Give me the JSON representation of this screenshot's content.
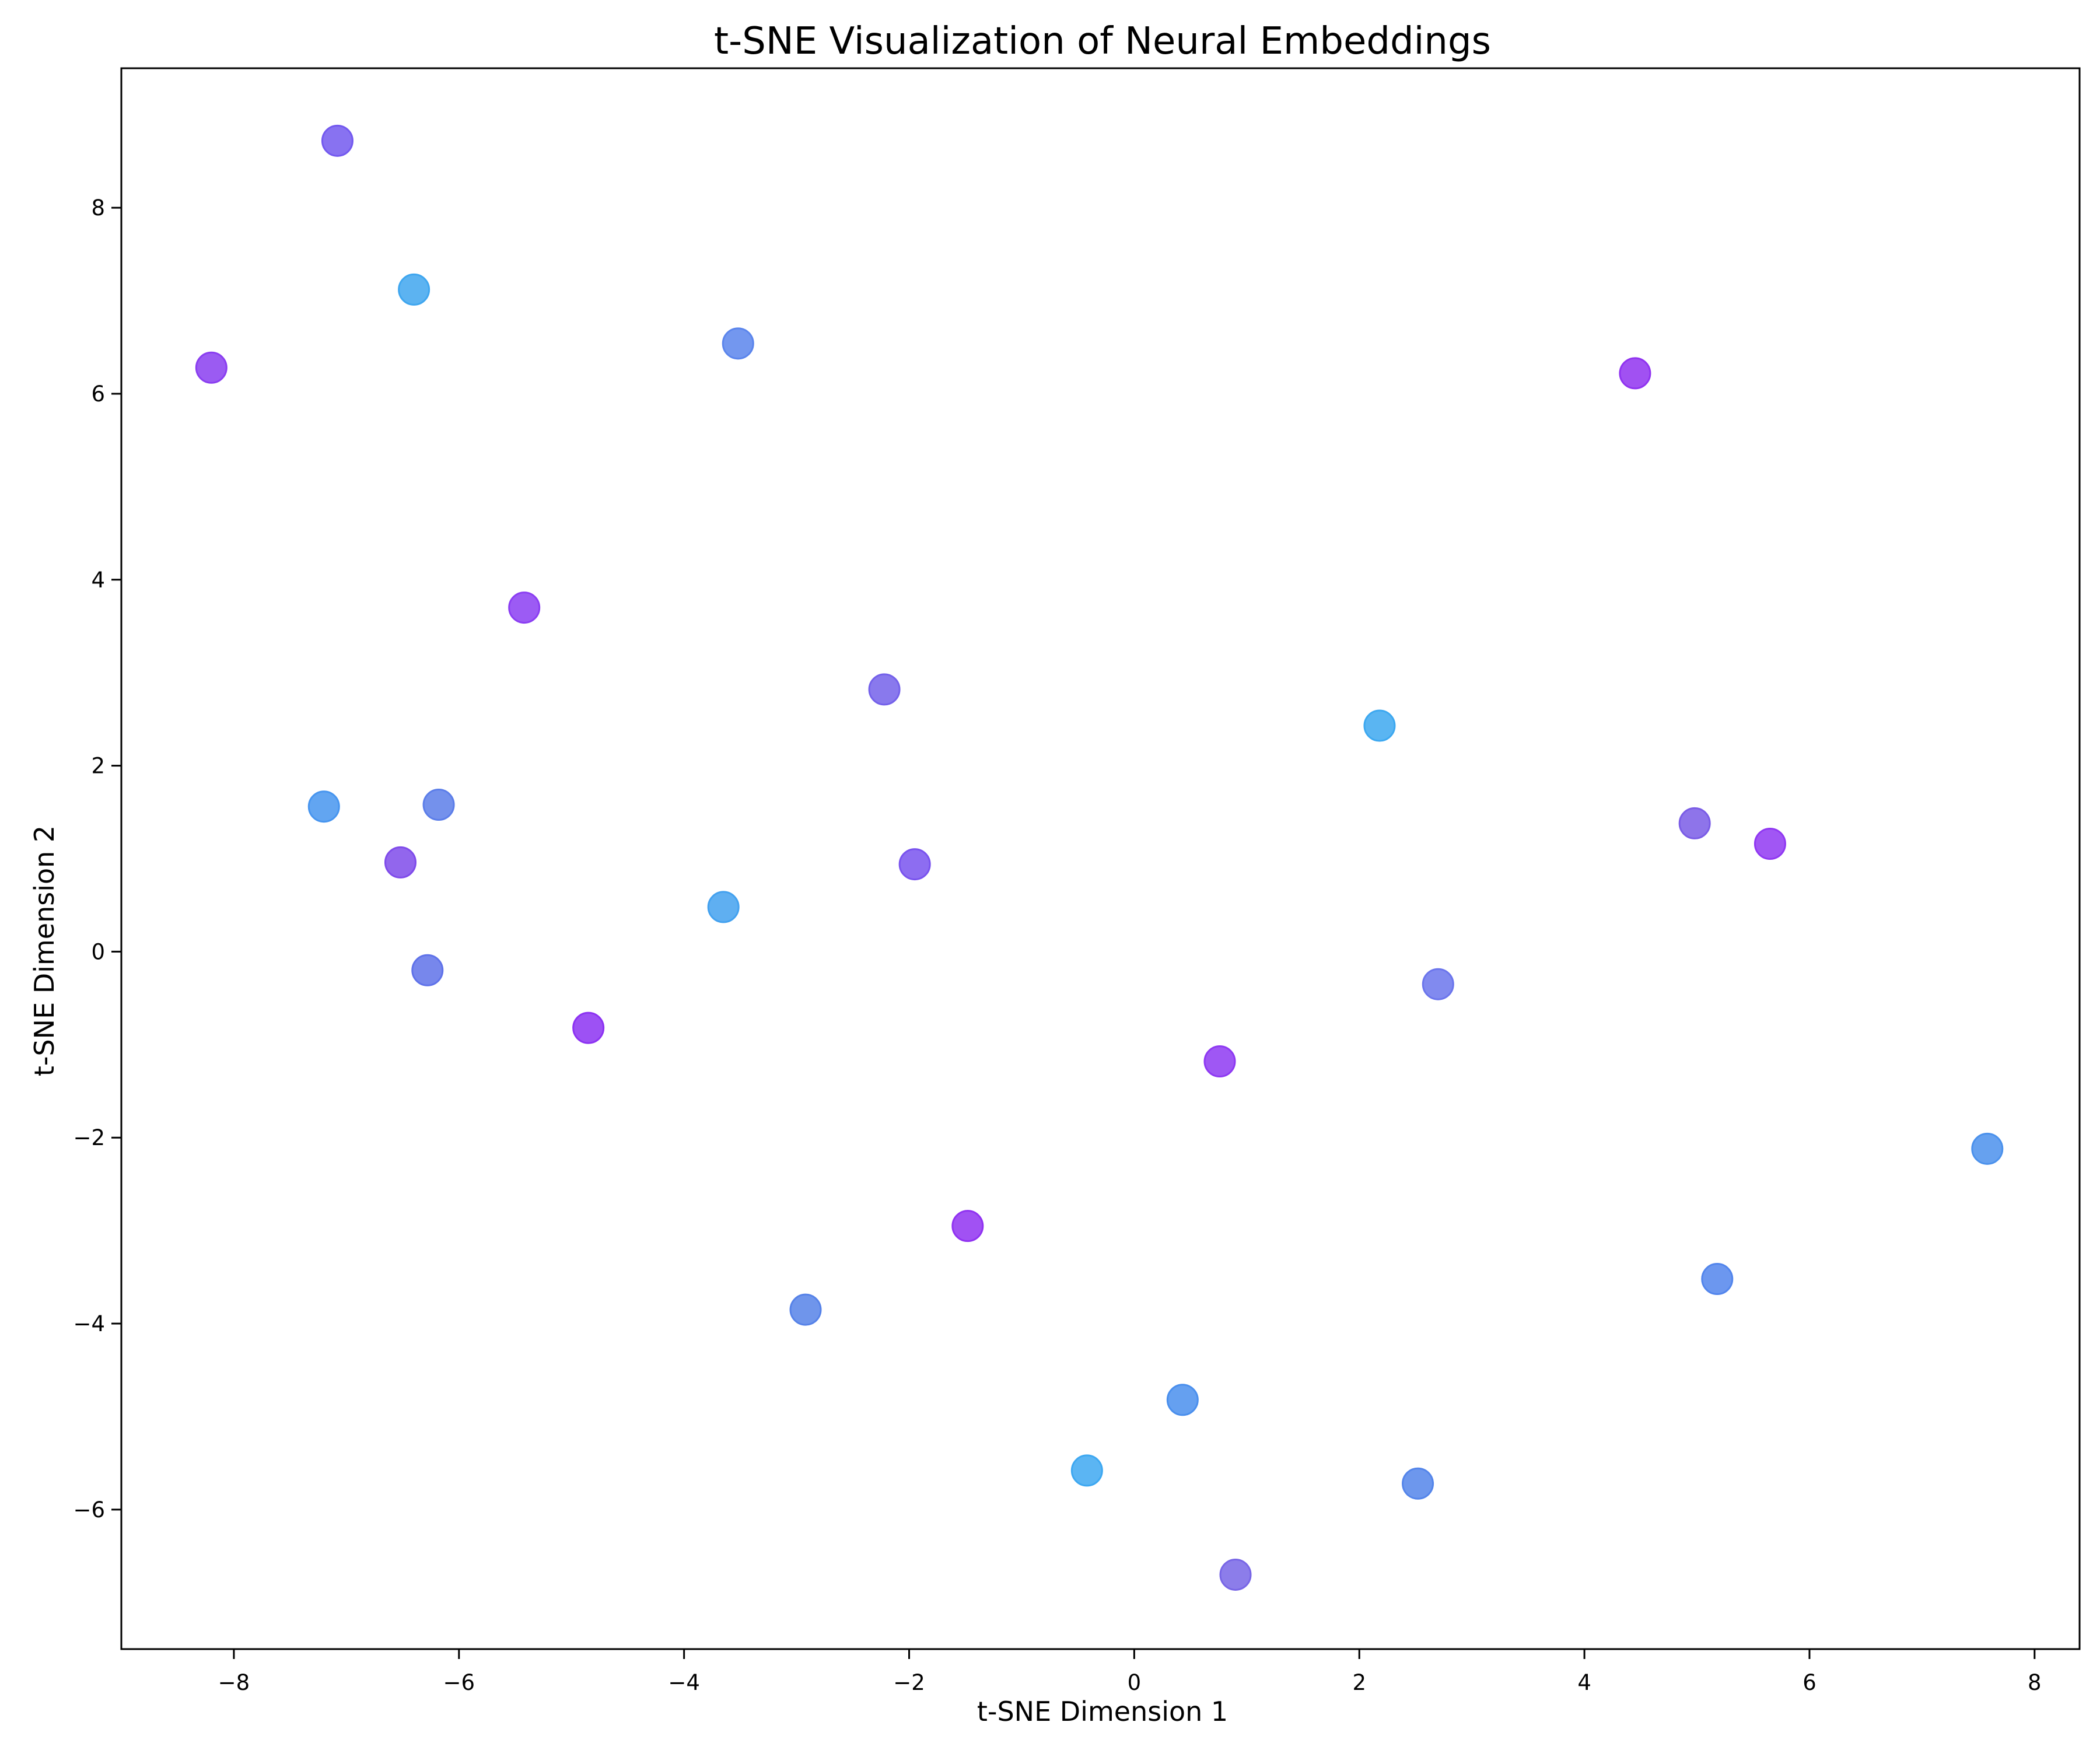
{
  "chart_data": {
    "type": "scatter",
    "title": "t-SNE Visualization of Neural Embeddings",
    "xlabel": "t-SNE Dimension 1",
    "ylabel": "t-SNE Dimension 2",
    "xlim": [
      -9.0,
      8.4
    ],
    "ylim": [
      -7.5,
      9.5
    ],
    "xticks": [
      -8,
      -6,
      -4,
      -2,
      0,
      2,
      4,
      6,
      8
    ],
    "yticks": [
      -6,
      -4,
      -2,
      0,
      2,
      4,
      6,
      8
    ],
    "xtick_labels": [
      "−8",
      "−6",
      "−4",
      "−2",
      "0",
      "2",
      "4",
      "6",
      "8"
    ],
    "ytick_labels": [
      "−6",
      "−4",
      "−2",
      "0",
      "2",
      "4",
      "6",
      "8"
    ],
    "grid": false,
    "points": [
      {
        "x": -7.08,
        "y": 8.72,
        "color": "#7359ef"
      },
      {
        "x": -6.4,
        "y": 7.12,
        "color": "#3fa6ef"
      },
      {
        "x": -8.2,
        "y": 6.28,
        "color": "#8a3ef0"
      },
      {
        "x": -3.52,
        "y": 6.54,
        "color": "#5b85ec"
      },
      {
        "x": 4.45,
        "y": 6.22,
        "color": "#9033f0"
      },
      {
        "x": -5.42,
        "y": 3.7,
        "color": "#8b3ef2"
      },
      {
        "x": -2.22,
        "y": 2.82,
        "color": "#7461ea"
      },
      {
        "x": 2.18,
        "y": 2.43,
        "color": "#3da8f0"
      },
      {
        "x": -7.2,
        "y": 1.56,
        "color": "#4795ef"
      },
      {
        "x": -6.18,
        "y": 1.58,
        "color": "#5c7ee9"
      },
      {
        "x": 4.98,
        "y": 1.38,
        "color": "#7a5ce6"
      },
      {
        "x": 5.65,
        "y": 1.16,
        "color": "#9038f2"
      },
      {
        "x": -6.52,
        "y": 0.96,
        "color": "#7f4bea"
      },
      {
        "x": -1.95,
        "y": 0.94,
        "color": "#7953ee"
      },
      {
        "x": -3.65,
        "y": 0.48,
        "color": "#43a1ef"
      },
      {
        "x": -6.28,
        "y": -0.2,
        "color": "#5f72e9"
      },
      {
        "x": 2.7,
        "y": -0.35,
        "color": "#6b75ec"
      },
      {
        "x": -4.85,
        "y": -0.82,
        "color": "#8c32f2"
      },
      {
        "x": 0.76,
        "y": -1.18,
        "color": "#8e39f2"
      },
      {
        "x": 7.58,
        "y": -2.12,
        "color": "#4b91ec"
      },
      {
        "x": -1.48,
        "y": -2.95,
        "color": "#9032f1"
      },
      {
        "x": 5.18,
        "y": -3.52,
        "color": "#5285ec"
      },
      {
        "x": -2.92,
        "y": -3.85,
        "color": "#5682e8"
      },
      {
        "x": 0.43,
        "y": -4.82,
        "color": "#4a8fed"
      },
      {
        "x": -0.42,
        "y": -5.58,
        "color": "#3ea8f1"
      },
      {
        "x": 2.52,
        "y": -5.72,
        "color": "#5485ea"
      },
      {
        "x": 0.9,
        "y": -6.7,
        "color": "#7866e6"
      }
    ]
  }
}
